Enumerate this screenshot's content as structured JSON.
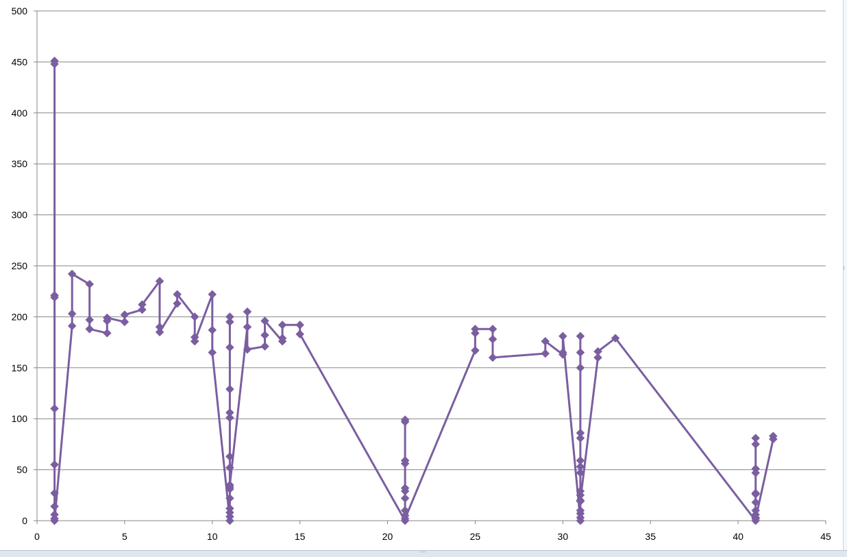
{
  "chart_data": {
    "type": "scatter",
    "title": "",
    "xlabel": "",
    "ylabel": "",
    "xlim": [
      0,
      45
    ],
    "ylim": [
      0,
      500
    ],
    "x_ticks": [
      0,
      5,
      10,
      15,
      20,
      25,
      30,
      35,
      40,
      45
    ],
    "y_ticks": [
      0,
      50,
      100,
      150,
      200,
      250,
      300,
      350,
      400,
      450,
      500
    ],
    "x_tick_labels": [
      "0",
      "5",
      "10",
      "15",
      "20",
      "25",
      "30",
      "35",
      "40",
      "45"
    ],
    "y_tick_labels": [
      "0",
      "50",
      "100",
      "150",
      "200",
      "250",
      "300",
      "350",
      "400",
      "450",
      "500"
    ],
    "grid": "horizontal major gridlines",
    "legend": "none",
    "marker": "diamond",
    "line": "straight lines connecting points in order",
    "series": [
      {
        "color": "#7a5ea0",
        "points": [
          [
            1,
            451
          ],
          [
            1,
            448
          ],
          [
            1,
            221
          ],
          [
            1,
            219
          ],
          [
            1,
            110
          ],
          [
            1,
            55
          ],
          [
            1,
            27
          ],
          [
            1,
            14
          ],
          [
            1,
            6
          ],
          [
            1,
            2
          ],
          [
            1,
            0
          ],
          [
            2,
            191
          ],
          [
            2,
            203
          ],
          [
            2,
            242
          ],
          [
            3,
            232
          ],
          [
            3,
            197
          ],
          [
            3,
            188
          ],
          [
            4,
            184
          ],
          [
            4,
            196
          ],
          [
            4,
            199
          ],
          [
            5,
            195
          ],
          [
            5,
            202
          ],
          [
            6,
            207
          ],
          [
            6,
            212
          ],
          [
            7,
            235
          ],
          [
            7,
            190
          ],
          [
            7,
            185
          ],
          [
            8,
            213
          ],
          [
            8,
            222
          ],
          [
            9,
            200
          ],
          [
            9,
            180
          ],
          [
            9,
            176
          ],
          [
            10,
            222
          ],
          [
            10,
            187
          ],
          [
            10,
            165
          ],
          [
            11,
            0
          ],
          [
            11,
            4
          ],
          [
            11,
            8
          ],
          [
            11,
            12
          ],
          [
            11,
            22
          ],
          [
            11,
            33
          ],
          [
            11,
            52
          ],
          [
            11,
            63
          ],
          [
            11,
            101
          ],
          [
            11,
            106
          ],
          [
            11,
            129
          ],
          [
            11,
            170
          ],
          [
            11,
            195
          ],
          [
            11,
            200
          ],
          [
            11,
            31
          ],
          [
            11,
            35
          ],
          [
            12,
            190
          ],
          [
            12,
            205
          ],
          [
            12,
            168
          ],
          [
            13,
            171
          ],
          [
            13,
            182
          ],
          [
            13,
            196
          ],
          [
            14,
            176
          ],
          [
            14,
            179
          ],
          [
            14,
            192
          ],
          [
            15,
            192
          ],
          [
            15,
            183
          ],
          [
            21,
            0
          ],
          [
            21,
            5
          ],
          [
            21,
            10
          ],
          [
            21,
            22
          ],
          [
            21,
            29
          ],
          [
            21,
            32
          ],
          [
            21,
            56
          ],
          [
            21,
            59
          ],
          [
            21,
            97
          ],
          [
            21,
            99
          ],
          [
            21,
            2
          ],
          [
            25,
            167
          ],
          [
            25,
            184
          ],
          [
            25,
            188
          ],
          [
            26,
            188
          ],
          [
            26,
            178
          ],
          [
            26,
            160
          ],
          [
            29,
            164
          ],
          [
            29,
            176
          ],
          [
            30,
            163
          ],
          [
            30,
            165
          ],
          [
            30,
            181
          ],
          [
            31,
            0
          ],
          [
            31,
            3
          ],
          [
            31,
            7
          ],
          [
            31,
            10
          ],
          [
            31,
            19
          ],
          [
            31,
            25
          ],
          [
            31,
            29
          ],
          [
            31,
            47
          ],
          [
            31,
            53
          ],
          [
            31,
            59
          ],
          [
            31,
            81
          ],
          [
            31,
            86
          ],
          [
            31,
            150
          ],
          [
            31,
            165
          ],
          [
            31,
            181
          ],
          [
            31,
            20
          ],
          [
            32,
            160
          ],
          [
            32,
            166
          ],
          [
            33,
            179
          ],
          [
            41,
            0
          ],
          [
            41,
            3
          ],
          [
            41,
            6
          ],
          [
            41,
            10
          ],
          [
            41,
            18
          ],
          [
            41,
            26
          ],
          [
            41,
            27
          ],
          [
            41,
            47
          ],
          [
            41,
            51
          ],
          [
            41,
            75
          ],
          [
            41,
            81
          ],
          [
            41,
            2
          ],
          [
            42,
            80
          ],
          [
            42,
            83
          ]
        ]
      }
    ]
  }
}
